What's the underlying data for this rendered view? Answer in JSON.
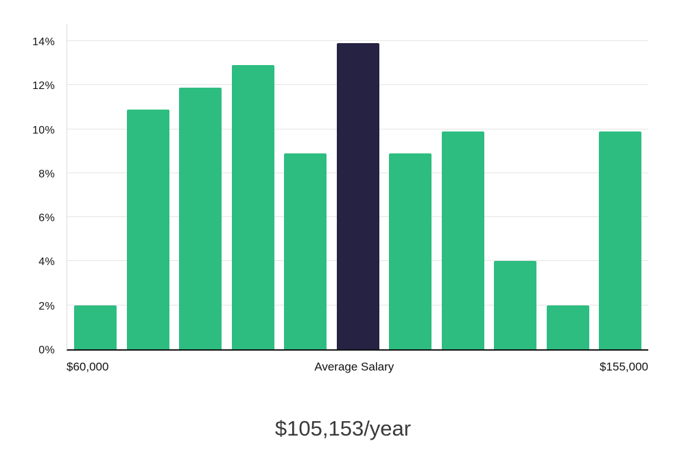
{
  "chart_data": {
    "type": "bar",
    "values": [
      2,
      10.9,
      11.9,
      12.9,
      8.9,
      13.9,
      8.9,
      9.9,
      4,
      2,
      9.9
    ],
    "highlight_index": 5,
    "bar_color": "#2dbd80",
    "highlight_color": "#262243",
    "y_ticks": [
      0,
      2,
      4,
      6,
      8,
      10,
      12,
      14
    ],
    "y_tick_suffix": "%",
    "x_labels": [
      "$60,000",
      "Average Salary",
      "$155,000"
    ],
    "ylim": [
      0,
      14.84
    ],
    "grid": "horizontal",
    "legend": "none",
    "title": "$105,153/year"
  }
}
